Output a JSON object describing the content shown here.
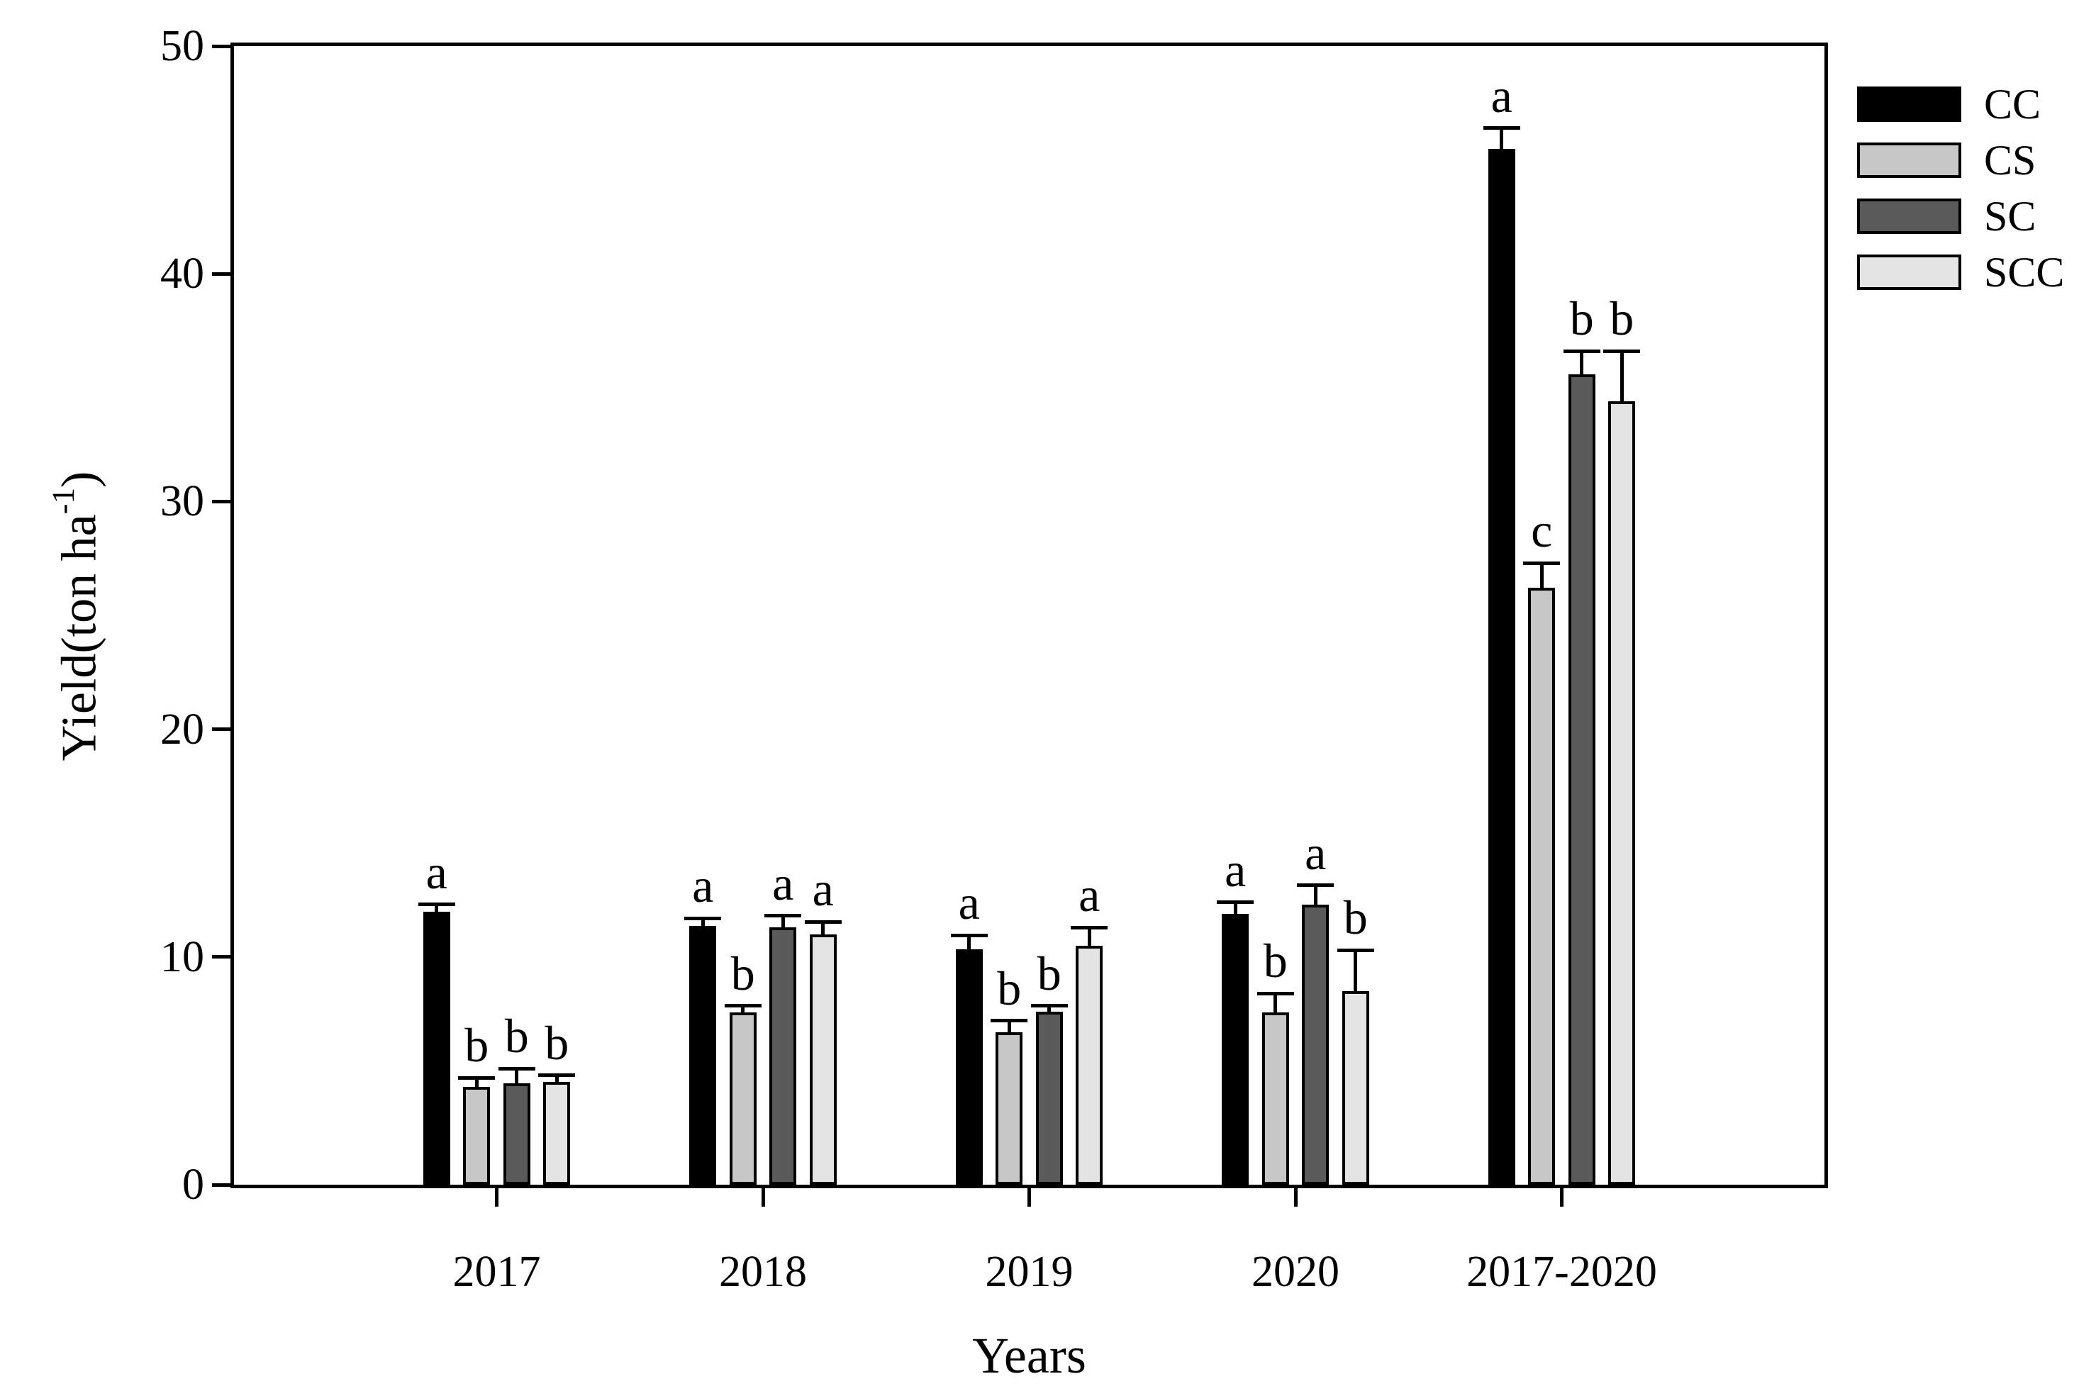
{
  "chart_data": {
    "type": "bar",
    "title": "",
    "xlabel": "Years",
    "ylabel_prefix": "Yield(ton ha",
    "ylabel_sup": "-1",
    "ylabel_suffix": ")",
    "categories": [
      "2017",
      "2018",
      "2019",
      "2020",
      "2017-2020"
    ],
    "series": [
      {
        "name": "CC",
        "color": "#000000",
        "values": [
          12.0,
          11.35,
          10.35,
          11.9,
          45.5
        ],
        "errors": [
          0.3,
          0.35,
          0.6,
          0.5,
          0.9
        ],
        "letters": [
          "a",
          "a",
          "a",
          "a",
          "a"
        ]
      },
      {
        "name": "CS",
        "color": "#c7c7c7",
        "values": [
          4.3,
          7.55,
          6.7,
          7.55,
          26.2
        ],
        "errors": [
          0.4,
          0.3,
          0.5,
          0.85,
          1.1
        ],
        "letters": [
          "b",
          "b",
          "b",
          "b",
          "c"
        ]
      },
      {
        "name": "SC",
        "color": "#5a5a5a",
        "values": [
          4.45,
          11.3,
          7.6,
          12.3,
          35.6
        ],
        "errors": [
          0.65,
          0.5,
          0.25,
          0.85,
          1.0
        ],
        "letters": [
          "b",
          "a",
          "b",
          "a",
          "b"
        ]
      },
      {
        "name": "SCC",
        "color": "#e4e4e4",
        "values": [
          4.5,
          11.0,
          10.5,
          8.5,
          34.4
        ],
        "errors": [
          0.3,
          0.55,
          0.8,
          1.8,
          2.2
        ],
        "letters": [
          "b",
          "a",
          "a",
          "b",
          "b"
        ]
      }
    ],
    "ylim": [
      0,
      50
    ],
    "yticks": [
      0,
      10,
      20,
      30,
      40,
      50
    ],
    "error_bars": "upper",
    "grid": false,
    "legend_position": "outside-top-right",
    "axis_color": "#000000",
    "background_color": "#ffffff"
  }
}
